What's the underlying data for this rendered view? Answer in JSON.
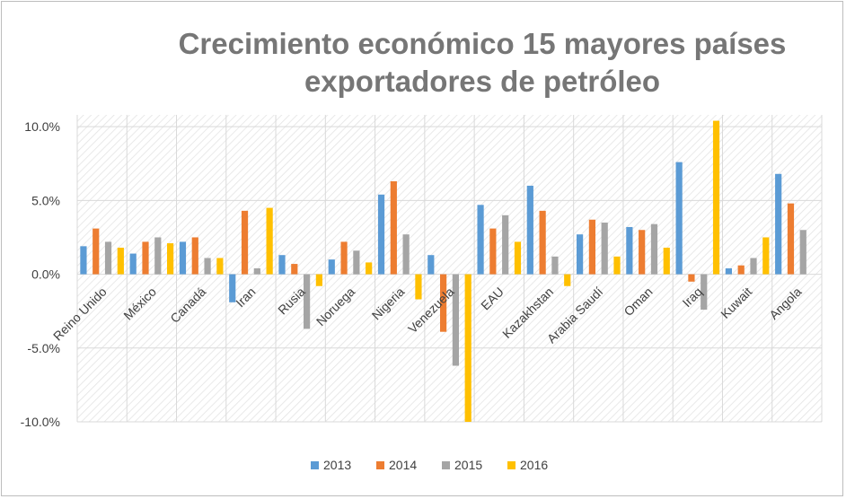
{
  "chart_data": {
    "type": "bar",
    "title_line1": "Crecimiento económico 15 mayores países",
    "title_line2": "exportadores de petróleo",
    "categories": [
      "Reino Unido",
      "México",
      "Canadá",
      "Iran",
      "Rusia",
      "Noruega",
      "Nigeria",
      "Venezuela",
      "EAU",
      "Kazakhstan",
      "Arabia Saudí",
      "Oman",
      "Iraq",
      "Kuwait",
      "Angola"
    ],
    "series": [
      {
        "name": "2013",
        "color": "#5b9bd5",
        "values": [
          1.9,
          1.4,
          2.2,
          -1.9,
          1.3,
          1.0,
          5.4,
          1.3,
          4.7,
          6.0,
          2.7,
          3.2,
          7.6,
          0.4,
          6.8
        ]
      },
      {
        "name": "2014",
        "color": "#ed7d31",
        "values": [
          3.1,
          2.2,
          2.5,
          4.3,
          0.7,
          2.2,
          6.3,
          -3.9,
          3.1,
          4.3,
          3.7,
          3.0,
          -0.5,
          0.6,
          4.8
        ]
      },
      {
        "name": "2015",
        "color": "#a5a5a5",
        "values": [
          2.2,
          2.5,
          1.1,
          0.4,
          -3.7,
          1.6,
          2.7,
          -6.2,
          4.0,
          1.2,
          3.5,
          3.4,
          -2.4,
          1.1,
          3.0
        ]
      },
      {
        "name": "2016",
        "color": "#ffc000",
        "values": [
          1.8,
          2.1,
          1.1,
          4.5,
          -0.8,
          0.8,
          -1.7,
          -10.0,
          2.2,
          -0.8,
          1.2,
          1.8,
          10.4,
          2.5,
          0.0
        ]
      }
    ],
    "ylim": [
      -10,
      10.8
    ],
    "yticks": [
      10,
      5,
      0,
      -5,
      -10
    ],
    "ytick_labels": [
      "10.0%",
      "5.0%",
      "0.0%",
      "-5.0%",
      "-10.0%"
    ],
    "xlabel": "",
    "ylabel": "",
    "legend_position": "bottom",
    "grid": true
  }
}
